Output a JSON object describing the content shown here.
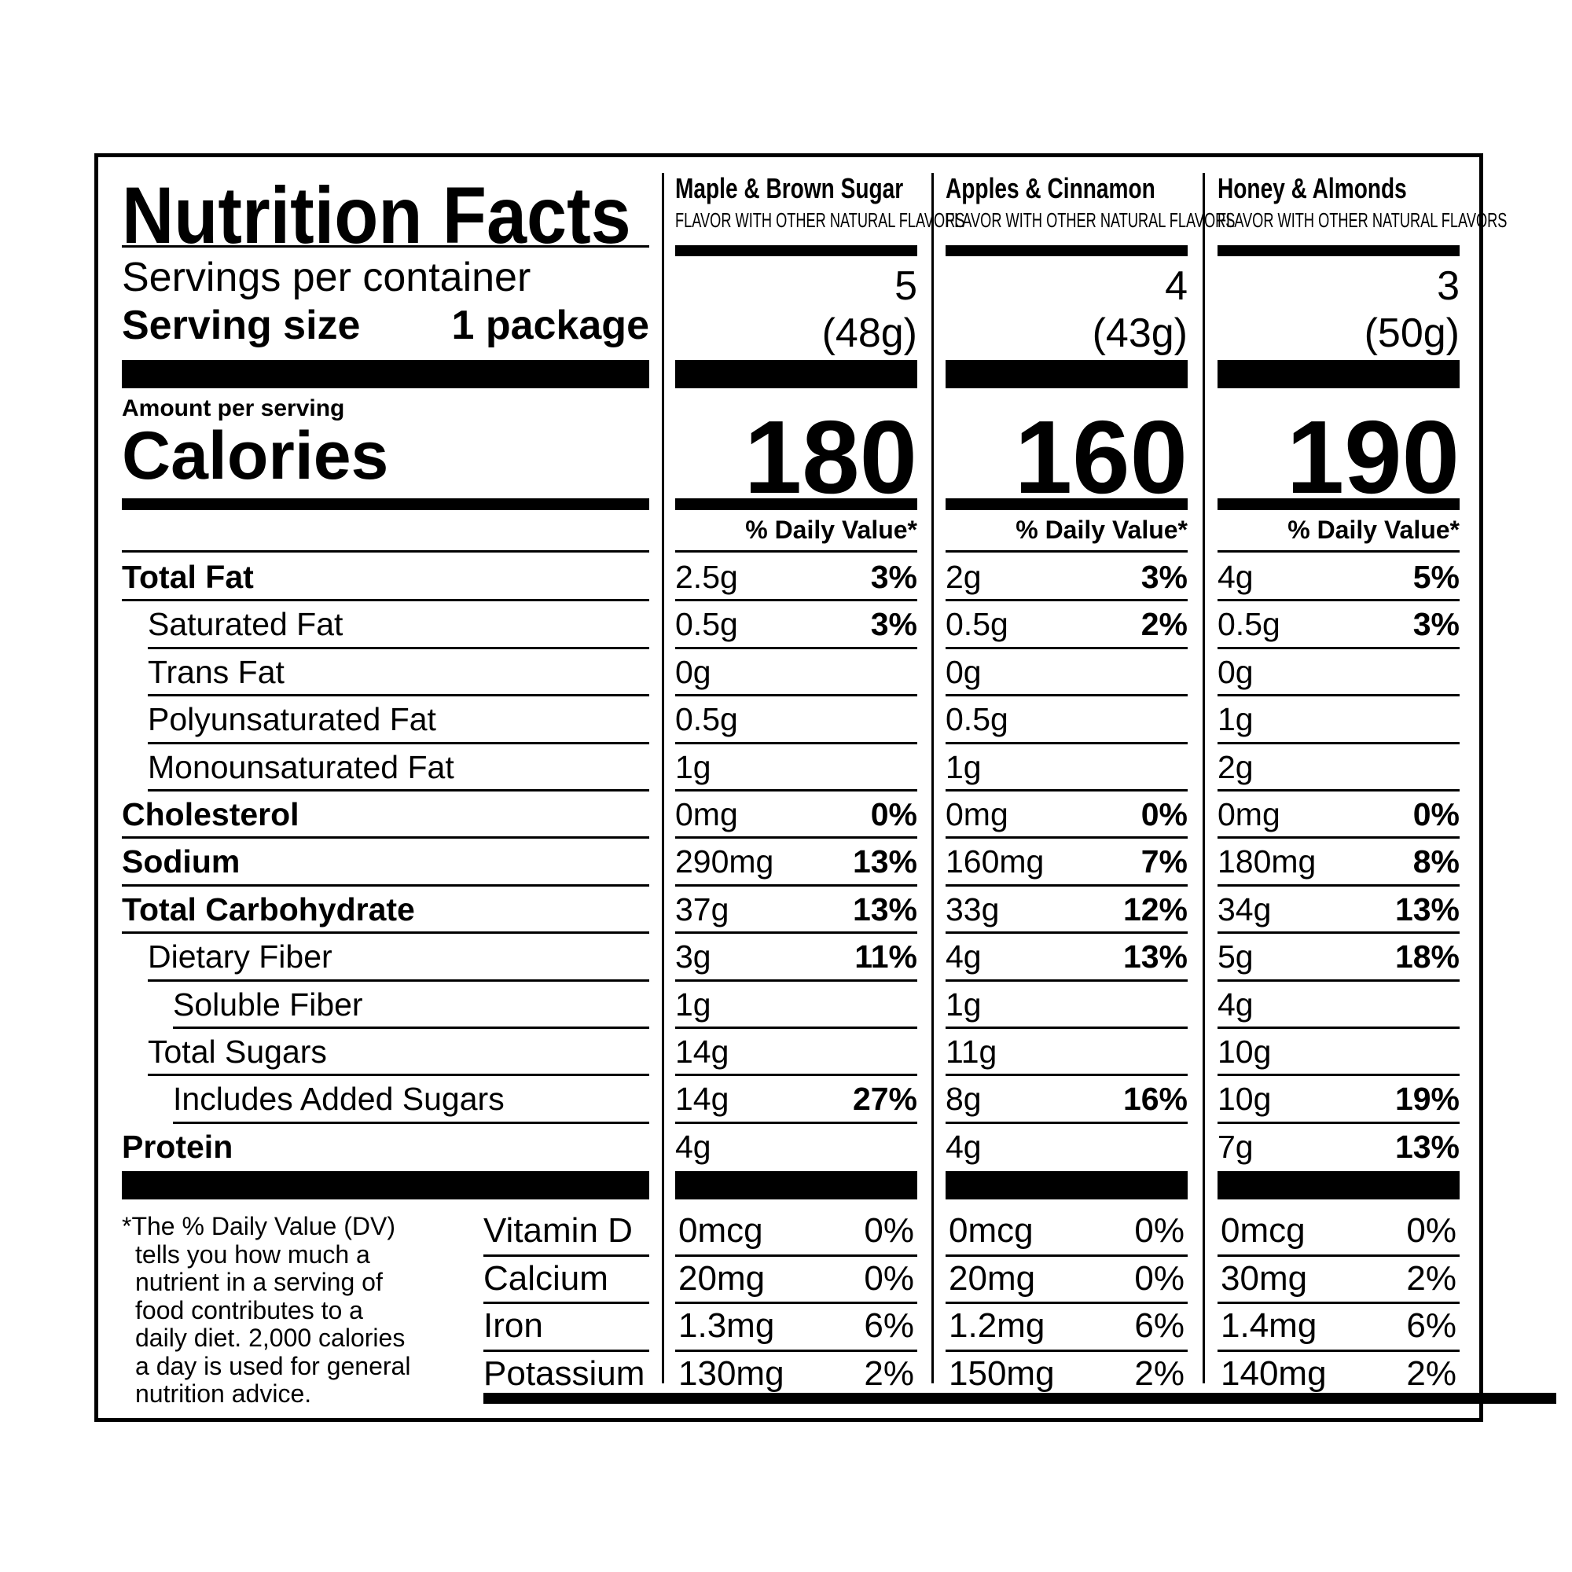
{
  "title": "Nutrition Facts",
  "servings_label": "Servings per container",
  "serving_size_label": "Serving size",
  "serving_size_value": "1 package",
  "amount_per_serving": "Amount per serving",
  "calories_label": "Calories",
  "dv_header": "% Daily Value*",
  "products": [
    {
      "name": "Maple & Brown Sugar",
      "subtitle": "FLAVOR WITH OTHER NATURAL FLAVORS",
      "servings": "5",
      "serving_weight": "(48g)",
      "calories": "180"
    },
    {
      "name": "Apples & Cinnamon",
      "subtitle": "FLAVOR WITH OTHER NATURAL FLAVORS",
      "servings": "4",
      "serving_weight": "(43g)",
      "calories": "160"
    },
    {
      "name": "Honey & Almonds",
      "subtitle": "FLAVOR WITH OTHER NATURAL FLAVORS",
      "servings": "3",
      "serving_weight": "(50g)",
      "calories": "190"
    }
  ],
  "nutrients": [
    {
      "label": "Total Fat",
      "bold": true,
      "indent": 0,
      "values": [
        {
          "amount": "2.5g",
          "dv": "3%"
        },
        {
          "amount": "2g",
          "dv": "3%"
        },
        {
          "amount": "4g",
          "dv": "5%"
        }
      ]
    },
    {
      "label": "Saturated Fat",
      "bold": false,
      "indent": 1,
      "values": [
        {
          "amount": "0.5g",
          "dv": "3%"
        },
        {
          "amount": "0.5g",
          "dv": "2%"
        },
        {
          "amount": "0.5g",
          "dv": "3%"
        }
      ]
    },
    {
      "label": "Trans Fat",
      "bold": false,
      "indent": 1,
      "values": [
        {
          "amount": "0g",
          "dv": ""
        },
        {
          "amount": "0g",
          "dv": ""
        },
        {
          "amount": "0g",
          "dv": ""
        }
      ]
    },
    {
      "label": "Polyunsaturated Fat",
      "bold": false,
      "indent": 1,
      "values": [
        {
          "amount": "0.5g",
          "dv": ""
        },
        {
          "amount": "0.5g",
          "dv": ""
        },
        {
          "amount": "1g",
          "dv": ""
        }
      ]
    },
    {
      "label": "Monounsaturated Fat",
      "bold": false,
      "indent": 1,
      "values": [
        {
          "amount": "1g",
          "dv": ""
        },
        {
          "amount": "1g",
          "dv": ""
        },
        {
          "amount": "2g",
          "dv": ""
        }
      ]
    },
    {
      "label": "Cholesterol",
      "bold": true,
      "indent": 0,
      "values": [
        {
          "amount": "0mg",
          "dv": "0%"
        },
        {
          "amount": "0mg",
          "dv": "0%"
        },
        {
          "amount": "0mg",
          "dv": "0%"
        }
      ]
    },
    {
      "label": "Sodium",
      "bold": true,
      "indent": 0,
      "values": [
        {
          "amount": "290mg",
          "dv": "13%"
        },
        {
          "amount": "160mg",
          "dv": "7%"
        },
        {
          "amount": "180mg",
          "dv": "8%"
        }
      ]
    },
    {
      "label": "Total Carbohydrate",
      "bold": true,
      "indent": 0,
      "values": [
        {
          "amount": "37g",
          "dv": "13%"
        },
        {
          "amount": "33g",
          "dv": "12%"
        },
        {
          "amount": "34g",
          "dv": "13%"
        }
      ]
    },
    {
      "label": "Dietary Fiber",
      "bold": false,
      "indent": 1,
      "values": [
        {
          "amount": "3g",
          "dv": "11%"
        },
        {
          "amount": "4g",
          "dv": "13%"
        },
        {
          "amount": "5g",
          "dv": "18%"
        }
      ]
    },
    {
      "label": "Soluble Fiber",
      "bold": false,
      "indent": 2,
      "values": [
        {
          "amount": "1g",
          "dv": ""
        },
        {
          "amount": "1g",
          "dv": ""
        },
        {
          "amount": "4g",
          "dv": ""
        }
      ]
    },
    {
      "label": "Total Sugars",
      "bold": false,
      "indent": 1,
      "values": [
        {
          "amount": "14g",
          "dv": ""
        },
        {
          "amount": "11g",
          "dv": ""
        },
        {
          "amount": "10g",
          "dv": ""
        }
      ]
    },
    {
      "label": "Includes Added Sugars",
      "bold": false,
      "indent": 2,
      "values": [
        {
          "amount": "14g",
          "dv": "27%"
        },
        {
          "amount": "8g",
          "dv": "16%"
        },
        {
          "amount": "10g",
          "dv": "19%"
        }
      ]
    },
    {
      "label": "Protein",
      "bold": true,
      "indent": 0,
      "values": [
        {
          "amount": "4g",
          "dv": ""
        },
        {
          "amount": "4g",
          "dv": ""
        },
        {
          "amount": "7g",
          "dv": "13%"
        }
      ]
    }
  ],
  "vitamins": [
    {
      "label": "Vitamin D",
      "values": [
        {
          "amount": "0mcg",
          "dv": "0%"
        },
        {
          "amount": "0mcg",
          "dv": "0%"
        },
        {
          "amount": "0mcg",
          "dv": "0%"
        }
      ]
    },
    {
      "label": "Calcium",
      "values": [
        {
          "amount": "20mg",
          "dv": "0%"
        },
        {
          "amount": "20mg",
          "dv": "0%"
        },
        {
          "amount": "30mg",
          "dv": "2%"
        }
      ]
    },
    {
      "label": "Iron",
      "values": [
        {
          "amount": "1.3mg",
          "dv": "6%"
        },
        {
          "amount": "1.2mg",
          "dv": "6%"
        },
        {
          "amount": "1.4mg",
          "dv": "6%"
        }
      ]
    },
    {
      "label": "Potassium",
      "values": [
        {
          "amount": "130mg",
          "dv": "2%"
        },
        {
          "amount": "150mg",
          "dv": "2%"
        },
        {
          "amount": "140mg",
          "dv": "2%"
        }
      ]
    }
  ],
  "footnote_lines": [
    "*The % Daily Value (DV)",
    "tells you how much a",
    "nutrient in a serving of",
    "food contributes to a",
    "daily diet. 2,000 calories",
    "a day is used for general",
    "nutrition advice."
  ]
}
